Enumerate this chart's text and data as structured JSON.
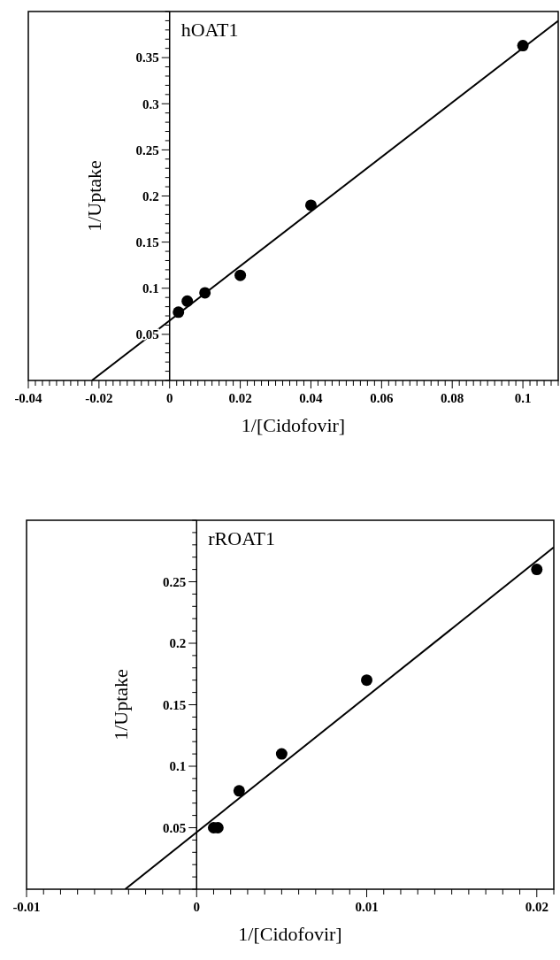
{
  "chart_data": [
    {
      "type": "scatter",
      "title": "hOAT1",
      "xlabel": "1/[Cidofovir]",
      "ylabel": "1/Uptake",
      "marker": "circle",
      "grid": false,
      "xlim": [
        -0.04,
        0.11
      ],
      "ylim": [
        0,
        0.4
      ],
      "xticks": [
        -0.04,
        {
          "value": -0.038,
          "label": null
        },
        {
          "value": -0.036,
          "label": null
        },
        {
          "value": -0.034,
          "label": null
        },
        {
          "value": -0.032,
          "label": null
        },
        {
          "value": -0.03,
          "label": null
        },
        {
          "value": -0.028,
          "label": null
        },
        {
          "value": -0.026,
          "label": null
        },
        {
          "value": -0.024,
          "label": null
        },
        {
          "value": -0.022,
          "label": null
        },
        -0.02,
        {
          "value": -0.018,
          "label": null
        },
        {
          "value": -0.016,
          "label": null
        },
        {
          "value": -0.014,
          "label": null
        },
        {
          "value": -0.012,
          "label": null
        },
        {
          "value": -0.01,
          "label": null
        },
        {
          "value": -0.008,
          "label": null
        },
        {
          "value": -0.006,
          "label": null
        },
        {
          "value": -0.004,
          "label": null
        },
        {
          "value": -0.002,
          "label": null
        },
        0,
        {
          "value": 0.002,
          "label": null
        },
        {
          "value": 0.004,
          "label": null
        },
        {
          "value": 0.006,
          "label": null
        },
        {
          "value": 0.008,
          "label": null
        },
        {
          "value": 0.01,
          "label": null
        },
        {
          "value": 0.012,
          "label": null
        },
        {
          "value": 0.014,
          "label": null
        },
        {
          "value": 0.016,
          "label": null
        },
        {
          "value": 0.018,
          "label": null
        },
        0.02,
        {
          "value": 0.022,
          "label": null
        },
        {
          "value": 0.024,
          "label": null
        },
        {
          "value": 0.026,
          "label": null
        },
        {
          "value": 0.028,
          "label": null
        },
        {
          "value": 0.03,
          "label": null
        },
        {
          "value": 0.032,
          "label": null
        },
        {
          "value": 0.034,
          "label": null
        },
        {
          "value": 0.036,
          "label": null
        },
        {
          "value": 0.038,
          "label": null
        },
        0.04,
        {
          "value": 0.042,
          "label": null
        },
        {
          "value": 0.044,
          "label": null
        },
        {
          "value": 0.046,
          "label": null
        },
        {
          "value": 0.048,
          "label": null
        },
        {
          "value": 0.05,
          "label": null
        },
        {
          "value": 0.052,
          "label": null
        },
        {
          "value": 0.054,
          "label": null
        },
        {
          "value": 0.056,
          "label": null
        },
        {
          "value": 0.058,
          "label": null
        },
        0.06,
        {
          "value": 0.062,
          "label": null
        },
        {
          "value": 0.064,
          "label": null
        },
        {
          "value": 0.066,
          "label": null
        },
        {
          "value": 0.068,
          "label": null
        },
        {
          "value": 0.07,
          "label": null
        },
        {
          "value": 0.072,
          "label": null
        },
        {
          "value": 0.074,
          "label": null
        },
        {
          "value": 0.076,
          "label": null
        },
        {
          "value": 0.078,
          "label": null
        },
        0.08,
        {
          "value": 0.082,
          "label": null
        },
        {
          "value": 0.084,
          "label": null
        },
        {
          "value": 0.086,
          "label": null
        },
        {
          "value": 0.088,
          "label": null
        },
        {
          "value": 0.09,
          "label": null
        },
        {
          "value": 0.092,
          "label": null
        },
        {
          "value": 0.094,
          "label": null
        },
        {
          "value": 0.096,
          "label": null
        },
        {
          "value": 0.098,
          "label": null
        },
        0.1,
        {
          "value": 0.102,
          "label": null
        },
        {
          "value": 0.104,
          "label": null
        },
        {
          "value": 0.106,
          "label": null
        },
        {
          "value": 0.108,
          "label": null
        },
        {
          "value": 0.11,
          "label": null
        }
      ],
      "yticks": [
        {
          "value": 0,
          "label": null
        },
        {
          "value": 0.01,
          "label": null
        },
        {
          "value": 0.02,
          "label": null
        },
        {
          "value": 0.03,
          "label": null
        },
        {
          "value": 0.04,
          "label": null
        },
        0.05,
        {
          "value": 0.06,
          "label": null
        },
        {
          "value": 0.07,
          "label": null
        },
        {
          "value": 0.08,
          "label": null
        },
        {
          "value": 0.09,
          "label": null
        },
        0.1,
        {
          "value": 0.11,
          "label": null
        },
        {
          "value": 0.12,
          "label": null
        },
        {
          "value": 0.13,
          "label": null
        },
        {
          "value": 0.14,
          "label": null
        },
        0.15,
        {
          "value": 0.16,
          "label": null
        },
        {
          "value": 0.17,
          "label": null
        },
        {
          "value": 0.18,
          "label": null
        },
        {
          "value": 0.19,
          "label": null
        },
        0.2,
        {
          "value": 0.21,
          "label": null
        },
        {
          "value": 0.22,
          "label": null
        },
        {
          "value": 0.23,
          "label": null
        },
        {
          "value": 0.24,
          "label": null
        },
        0.25,
        {
          "value": 0.26,
          "label": null
        },
        {
          "value": 0.27,
          "label": null
        },
        {
          "value": 0.28,
          "label": null
        },
        {
          "value": 0.29,
          "label": null
        },
        0.3,
        {
          "value": 0.31,
          "label": null
        },
        {
          "value": 0.32,
          "label": null
        },
        {
          "value": 0.33,
          "label": null
        },
        {
          "value": 0.34,
          "label": null
        },
        0.35,
        {
          "value": 0.36,
          "label": null
        },
        {
          "value": 0.37,
          "label": null
        },
        {
          "value": 0.38,
          "label": null
        },
        {
          "value": 0.39,
          "label": null
        },
        {
          "value": 0.4,
          "label": null
        }
      ],
      "series": [
        {
          "type": "scatter",
          "color": "#000000",
          "x": [
            0.0025,
            0.005,
            0.01,
            0.02,
            0.04,
            0.1
          ],
          "values": [
            0.074,
            0.086,
            0.095,
            0.114,
            0.19,
            0.363
          ]
        },
        {
          "type": "line",
          "color": "#000000",
          "marker": "none",
          "line_style": "solid",
          "x": [
            -0.022,
            0.11
          ],
          "values": [
            0,
            0.39
          ]
        }
      ]
    },
    {
      "type": "scatter",
      "title": "rROAT1",
      "xlabel": "1/[Cidofovir]",
      "ylabel": "1/Uptake",
      "marker": "circle",
      "grid": false,
      "xlim": [
        -0.01,
        0.021
      ],
      "ylim": [
        0,
        0.3
      ],
      "xticks": [
        -0.01,
        {
          "value": -0.009,
          "label": null
        },
        {
          "value": -0.008,
          "label": null
        },
        {
          "value": -0.007,
          "label": null
        },
        {
          "value": -0.006,
          "label": null
        },
        {
          "value": -0.005,
          "label": null
        },
        {
          "value": -0.004,
          "label": null
        },
        {
          "value": -0.003,
          "label": null
        },
        {
          "value": -0.002,
          "label": null
        },
        {
          "value": -0.001,
          "label": null
        },
        0,
        {
          "value": 0.001,
          "label": null
        },
        {
          "value": 0.002,
          "label": null
        },
        {
          "value": 0.003,
          "label": null
        },
        {
          "value": 0.004,
          "label": null
        },
        {
          "value": 0.005,
          "label": null
        },
        {
          "value": 0.006,
          "label": null
        },
        {
          "value": 0.007,
          "label": null
        },
        {
          "value": 0.008,
          "label": null
        },
        {
          "value": 0.009,
          "label": null
        },
        0.01,
        {
          "value": 0.011,
          "label": null
        },
        {
          "value": 0.012,
          "label": null
        },
        {
          "value": 0.013,
          "label": null
        },
        {
          "value": 0.014,
          "label": null
        },
        {
          "value": 0.015,
          "label": null
        },
        {
          "value": 0.016,
          "label": null
        },
        {
          "value": 0.017,
          "label": null
        },
        {
          "value": 0.018,
          "label": null
        },
        {
          "value": 0.019,
          "label": null
        },
        0.02,
        {
          "value": 0.021,
          "label": null
        }
      ],
      "yticks": [
        {
          "value": 0,
          "label": null
        },
        {
          "value": 0.01,
          "label": null
        },
        {
          "value": 0.02,
          "label": null
        },
        {
          "value": 0.03,
          "label": null
        },
        {
          "value": 0.04,
          "label": null
        },
        0.05,
        {
          "value": 0.06,
          "label": null
        },
        {
          "value": 0.07,
          "label": null
        },
        {
          "value": 0.08,
          "label": null
        },
        {
          "value": 0.09,
          "label": null
        },
        0.1,
        {
          "value": 0.11,
          "label": null
        },
        {
          "value": 0.12,
          "label": null
        },
        {
          "value": 0.13,
          "label": null
        },
        {
          "value": 0.14,
          "label": null
        },
        0.15,
        {
          "value": 0.16,
          "label": null
        },
        {
          "value": 0.17,
          "label": null
        },
        {
          "value": 0.18,
          "label": null
        },
        {
          "value": 0.19,
          "label": null
        },
        0.2,
        {
          "value": 0.21,
          "label": null
        },
        {
          "value": 0.22,
          "label": null
        },
        {
          "value": 0.23,
          "label": null
        },
        {
          "value": 0.24,
          "label": null
        },
        0.25,
        {
          "value": 0.26,
          "label": null
        },
        {
          "value": 0.27,
          "label": null
        },
        {
          "value": 0.28,
          "label": null
        },
        {
          "value": 0.29,
          "label": null
        },
        {
          "value": 0.3,
          "label": null
        }
      ],
      "series": [
        {
          "type": "scatter",
          "color": "#000000",
          "x": [
            0.001,
            0.00125,
            0.0025,
            0.005,
            0.01,
            0.02
          ],
          "values": [
            0.05,
            0.05,
            0.08,
            0.11,
            0.17,
            0.26
          ]
        },
        {
          "type": "line",
          "color": "#000000",
          "marker": "none",
          "line_style": "solid",
          "x": [
            -0.0042,
            0.021
          ],
          "values": [
            0,
            0.278
          ]
        }
      ]
    }
  ]
}
